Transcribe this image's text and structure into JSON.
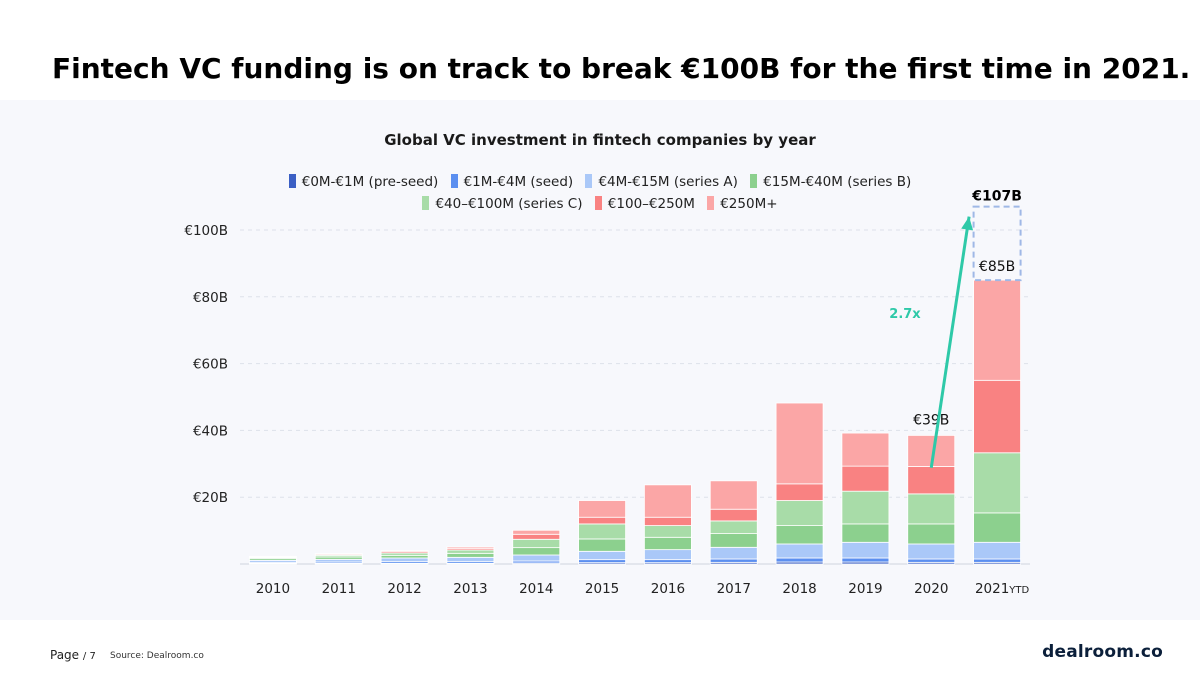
{
  "headline": "Fintech VC funding is on track to break €100B for the first time in 2021.",
  "footer": {
    "page_label": "Page",
    "page_suffix": "/ 7",
    "source": "Source: Dealroom.co",
    "brand": "dealroom.co"
  },
  "chart_data": {
    "type": "bar",
    "stacked": true,
    "title": "Global VC investment in fintech companies by year",
    "xlabel": "",
    "ylabel": "",
    "ylim": [
      0,
      100
    ],
    "y_ticks": [
      {
        "value": 20,
        "label": "€20B"
      },
      {
        "value": 40,
        "label": "€40B"
      },
      {
        "value": 60,
        "label": "€60B"
      },
      {
        "value": 80,
        "label": "€80B"
      },
      {
        "value": 100,
        "label": "€100B"
      }
    ],
    "categories": [
      "2010",
      "2011",
      "2012",
      "2013",
      "2014",
      "2015",
      "2016",
      "2017",
      "2018",
      "2019",
      "2020",
      "2021"
    ],
    "category_suffixes": [
      "",
      "",
      "",
      "",
      "",
      "",
      "",
      "",
      "",
      "",
      "",
      "YTD"
    ],
    "series": [
      {
        "name": "€0M-€1M  (pre-seed)",
        "color": "#3b5fc4",
        "values": [
          0.2,
          0.2,
          0.2,
          0.2,
          0.3,
          0.4,
          0.4,
          0.5,
          0.6,
          0.6,
          0.5,
          0.5
        ]
      },
      {
        "name": "€1M-€4M (seed)",
        "color": "#5b8ff0",
        "values": [
          0.3,
          0.4,
          0.5,
          0.5,
          0.6,
          0.9,
          0.9,
          1.0,
          1.2,
          1.2,
          1.0,
          1.0
        ]
      },
      {
        "name": "€4M-€15M (series A)",
        "color": "#aac8f8",
        "values": [
          0.6,
          0.8,
          1.1,
          1.3,
          1.8,
          2.5,
          3.0,
          3.5,
          4.2,
          4.7,
          4.5,
          5.0
        ]
      },
      {
        "name": "€15M-€40M (series B)",
        "color": "#8cd08e",
        "values": [
          0.5,
          0.7,
          0.8,
          1.2,
          2.2,
          3.7,
          3.7,
          4.1,
          5.5,
          5.5,
          6.0,
          8.8
        ]
      },
      {
        "name": "€40–€100M (series C)",
        "color": "#a8dca8",
        "values": [
          0.3,
          0.5,
          0.7,
          1.0,
          2.5,
          4.5,
          3.5,
          3.8,
          7.5,
          9.8,
          9.0,
          18.0
        ]
      },
      {
        "name": "€100–€250M",
        "color": "#f98282",
        "values": [
          0.2,
          0.3,
          0.4,
          0.5,
          1.5,
          2.0,
          2.5,
          3.5,
          5.0,
          7.5,
          8.2,
          21.7
        ]
      },
      {
        "name": "€250M+",
        "color": "#fba6a6",
        "values": [
          0.2,
          0.2,
          0.3,
          0.4,
          1.2,
          5.0,
          9.7,
          8.5,
          24.2,
          9.9,
          9.3,
          30.0
        ]
      }
    ],
    "projection": {
      "category": "2021",
      "value": 107,
      "label": "€107B"
    },
    "data_labels": [
      {
        "category": "2020",
        "value": 39,
        "label": "€39B"
      },
      {
        "category": "2021",
        "value": 85,
        "label": "€85B"
      }
    ],
    "annotation": {
      "text": "2.7x",
      "from_category": "2020",
      "to_category": "2021",
      "color": "#2ec9a8"
    },
    "legend_position": "top",
    "grid": true
  }
}
